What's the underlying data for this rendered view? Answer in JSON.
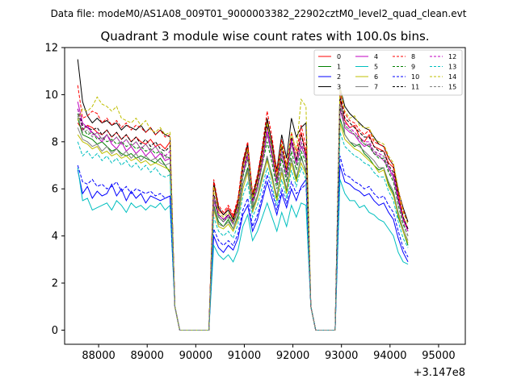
{
  "chart_data": {
    "type": "line",
    "suptitle": "Data file: modeM0/AS1A08_009T01_9000003382_22902cztM0_level2_quad_clean.evt",
    "title": "Quadrant 3 module wise count rates with 100.0s bins.",
    "xlabel": "",
    "ylabel": "",
    "x_offset_label": "+3.147e8",
    "xlim": [
      87300,
      95550
    ],
    "ylim": [
      -0.6,
      12.0
    ],
    "xticks": [
      88000,
      89000,
      90000,
      91000,
      92000,
      93000,
      94000,
      95000
    ],
    "yticks": [
      0,
      2,
      4,
      6,
      8,
      10,
      12
    ],
    "grid": false,
    "legend_position": "top-right",
    "x_segments": [
      {
        "start": 87570,
        "step": 100,
        "count": 20
      },
      {
        "start": 89570,
        "step": 100,
        "count": 8
      },
      {
        "start": 90370,
        "step": 100,
        "count": 8
      },
      {
        "start": 91170,
        "step": 100,
        "count": 20
      },
      {
        "start": 93170,
        "step": 100,
        "count": 6
      },
      {
        "start": 93770,
        "step": 100,
        "count": 15
      }
    ],
    "gap_blocks": [
      {
        "after_index": 19,
        "values": [
          1.0,
          0.0,
          0.0
        ]
      },
      {
        "after_index": 39,
        "values": [
          1.0,
          0.0,
          0.0
        ]
      }
    ],
    "series": [
      {
        "name": "0",
        "color": "#ff0000",
        "dash": "solid",
        "seg1": [
          8.8,
          8.5,
          8.7,
          8.6,
          8.4,
          8.3,
          8.5,
          8.2,
          8.4,
          8.1,
          8.3,
          8.0,
          8.2,
          8.0,
          7.9,
          8.1,
          7.8,
          7.9,
          7.7,
          8.0
        ],
        "seg2": [
          6.2,
          5.1,
          4.9,
          5.2,
          4.8,
          5.5,
          7.0,
          7.8,
          5.6,
          6.4,
          7.5,
          8.9,
          8.0,
          6.5,
          7.9,
          6.8,
          8.1,
          7.2,
          8.4,
          7.5
        ],
        "seg3": [
          9.8,
          8.9,
          8.6,
          8.7,
          8.2,
          8.0,
          8.3,
          7.8,
          7.7,
          7.6,
          7.1,
          6.9,
          5.8,
          4.8,
          4.3
        ]
      },
      {
        "name": "1",
        "color": "#008000",
        "dash": "solid",
        "seg1": [
          9.0,
          8.3,
          8.2,
          8.1,
          7.9,
          8.0,
          7.8,
          7.6,
          7.7,
          7.5,
          7.4,
          7.5,
          7.3,
          7.4,
          7.3,
          7.2,
          7.1,
          7.3,
          7.0,
          6.7
        ],
        "seg2": [
          5.3,
          4.6,
          4.4,
          4.7,
          4.3,
          4.9,
          6.2,
          6.9,
          5.2,
          5.7,
          6.6,
          7.3,
          6.6,
          5.6,
          6.9,
          5.9,
          7.3,
          6.4,
          7.4,
          6.7
        ],
        "seg3": [
          9.0,
          8.3,
          8.0,
          7.8,
          7.9,
          7.5,
          7.3,
          7.0,
          6.8,
          6.9,
          6.2,
          5.8,
          4.8,
          4.2,
          3.6
        ]
      },
      {
        "name": "2",
        "color": "#0000ff",
        "dash": "solid",
        "seg1": [
          6.8,
          5.8,
          6.1,
          5.6,
          5.9,
          5.7,
          5.8,
          6.2,
          5.7,
          6.0,
          5.5,
          5.9,
          5.6,
          5.8,
          5.4,
          5.7,
          5.6,
          5.5,
          5.6,
          5.7
        ],
        "seg2": [
          4.0,
          3.5,
          3.3,
          3.6,
          3.4,
          3.9,
          4.9,
          5.3,
          4.2,
          4.7,
          5.5,
          6.3,
          5.6,
          4.9,
          5.8,
          5.2,
          6.0,
          5.5,
          6.1,
          6.4
        ],
        "seg3": [
          7.0,
          6.3,
          6.2,
          6.0,
          5.9,
          5.7,
          5.8,
          5.5,
          5.3,
          5.4,
          5.0,
          4.7,
          3.9,
          3.3,
          2.9
        ]
      },
      {
        "name": "3",
        "color": "#000000",
        "dash": "solid",
        "seg1": [
          11.5,
          9.7,
          9.1,
          8.8,
          9.0,
          8.8,
          8.9,
          8.7,
          8.8,
          8.5,
          8.7,
          8.6,
          8.5,
          8.7,
          8.4,
          8.6,
          8.3,
          8.5,
          8.3,
          8.2
        ],
        "seg2": [
          6.3,
          5.2,
          4.9,
          5.1,
          4.7,
          5.4,
          7.1,
          7.9,
          5.7,
          6.5,
          7.7,
          9.0,
          7.9,
          6.8,
          8.3,
          7.3,
          9.0,
          8.2,
          8.6,
          8.8
        ],
        "seg3": [
          10.3,
          9.5,
          9.2,
          9.0,
          8.8,
          8.6,
          8.5,
          8.2,
          7.9,
          7.8,
          7.3,
          7.0,
          5.9,
          5.2,
          4.6
        ]
      },
      {
        "name": "4",
        "color": "#c000c0",
        "dash": "solid",
        "seg1": [
          9.7,
          8.8,
          8.6,
          8.4,
          8.2,
          8.0,
          8.3,
          7.9,
          7.7,
          8.0,
          7.6,
          7.8,
          7.5,
          7.7,
          7.4,
          7.6,
          7.3,
          7.5,
          7.2,
          7.3
        ],
        "seg2": [
          5.5,
          4.8,
          4.6,
          4.9,
          4.5,
          5.1,
          6.6,
          7.4,
          5.4,
          6.0,
          7.1,
          8.4,
          7.4,
          6.2,
          7.5,
          6.5,
          8.0,
          7.0,
          7.8,
          7.3
        ],
        "seg3": [
          9.4,
          8.6,
          8.4,
          8.3,
          8.0,
          7.8,
          7.9,
          7.5,
          7.4,
          7.2,
          6.9,
          6.5,
          5.5,
          4.7,
          4.2
        ]
      },
      {
        "name": "5",
        "color": "#00bfbf",
        "dash": "solid",
        "seg1": [
          6.9,
          5.5,
          5.6,
          5.1,
          5.2,
          5.3,
          5.4,
          5.1,
          5.5,
          5.3,
          5.0,
          5.4,
          5.2,
          5.3,
          5.1,
          5.3,
          5.2,
          5.4,
          5.1,
          5.3
        ],
        "seg2": [
          3.6,
          3.2,
          3.0,
          3.2,
          2.9,
          3.4,
          4.4,
          4.9,
          3.8,
          4.2,
          4.8,
          5.4,
          4.8,
          4.2,
          5.0,
          4.4,
          5.3,
          4.8,
          5.4,
          5.3
        ],
        "seg3": [
          6.4,
          5.8,
          5.5,
          5.5,
          5.2,
          5.3,
          5.0,
          4.9,
          4.7,
          4.6,
          4.3,
          4.0,
          3.3,
          2.9,
          2.8
        ]
      },
      {
        "name": "6",
        "color": "#bfbf00",
        "dash": "solid",
        "seg1": [
          8.3,
          8.0,
          7.9,
          7.7,
          7.8,
          7.5,
          7.6,
          7.4,
          7.5,
          7.3,
          7.4,
          7.2,
          7.3,
          7.1,
          7.2,
          7.0,
          7.1,
          7.0,
          6.9,
          6.8
        ],
        "seg2": [
          5.1,
          4.4,
          4.3,
          4.5,
          4.2,
          4.7,
          6.0,
          6.7,
          5.0,
          5.6,
          6.4,
          7.2,
          6.4,
          5.5,
          6.7,
          5.8,
          7.1,
          6.3,
          7.1,
          6.6
        ],
        "seg3": [
          8.8,
          8.1,
          7.9,
          7.7,
          7.6,
          7.4,
          7.2,
          7.0,
          6.7,
          6.8,
          6.1,
          5.7,
          4.9,
          4.2,
          3.7
        ]
      },
      {
        "name": "7",
        "color": "#808080",
        "dash": "solid",
        "seg1": [
          8.6,
          8.1,
          8.0,
          7.8,
          7.9,
          7.6,
          7.8,
          7.5,
          7.7,
          7.4,
          7.6,
          7.3,
          7.5,
          7.2,
          7.4,
          7.2,
          7.3,
          7.1,
          7.0,
          7.1
        ],
        "seg2": [
          5.2,
          4.5,
          4.4,
          4.6,
          4.3,
          4.8,
          6.2,
          6.8,
          5.1,
          5.7,
          6.5,
          7.4,
          6.5,
          5.7,
          6.9,
          6.0,
          7.3,
          6.5,
          7.3,
          6.8
        ],
        "seg3": [
          10.4,
          8.3,
          8.0,
          7.9,
          7.8,
          7.6,
          7.4,
          7.2,
          6.9,
          6.9,
          6.3,
          5.9,
          5.0,
          4.3,
          3.8
        ]
      },
      {
        "name": "8",
        "color": "#ff0000",
        "dash": "dashed",
        "seg1": [
          10.4,
          9.0,
          9.1,
          9.3,
          9.2,
          8.8,
          9.0,
          8.7,
          8.9,
          8.6,
          8.8,
          8.5,
          8.7,
          8.6,
          8.4,
          8.6,
          8.3,
          8.5,
          8.2,
          8.3
        ],
        "seg2": [
          6.4,
          5.3,
          5.0,
          5.3,
          4.9,
          5.6,
          7.2,
          8.0,
          5.8,
          6.6,
          7.8,
          9.3,
          8.2,
          6.7,
          8.1,
          7.0,
          8.4,
          7.5,
          8.7,
          7.8
        ],
        "seg3": [
          10.1,
          9.2,
          8.9,
          8.8,
          8.5,
          8.3,
          8.5,
          8.0,
          7.9,
          7.8,
          7.3,
          7.0,
          6.0,
          5.1,
          4.5
        ]
      },
      {
        "name": "9",
        "color": "#008000",
        "dash": "dashed",
        "seg1": [
          9.2,
          8.6,
          8.3,
          8.4,
          8.1,
          8.2,
          8.0,
          8.1,
          7.9,
          8.0,
          7.8,
          7.9,
          7.7,
          7.8,
          7.6,
          7.7,
          7.5,
          7.6,
          7.4,
          7.3
        ],
        "seg2": [
          5.6,
          4.8,
          4.6,
          4.8,
          4.5,
          5.1,
          6.5,
          7.3,
          5.4,
          6.0,
          7.0,
          8.0,
          7.1,
          6.0,
          7.3,
          6.3,
          7.6,
          6.8,
          7.6,
          7.1
        ],
        "seg3": [
          9.5,
          8.7,
          8.5,
          8.3,
          8.2,
          7.9,
          7.8,
          7.5,
          7.3,
          7.3,
          6.7,
          6.3,
          5.3,
          4.5,
          4.0
        ]
      },
      {
        "name": "10",
        "color": "#0000ff",
        "dash": "dashed",
        "seg1": [
          7.0,
          6.3,
          6.2,
          6.4,
          6.1,
          6.2,
          6.0,
          6.1,
          6.3,
          5.9,
          6.1,
          5.8,
          6.0,
          5.9,
          5.8,
          5.9,
          5.7,
          5.8,
          5.6,
          5.7
        ],
        "seg2": [
          4.3,
          3.8,
          3.6,
          3.8,
          3.6,
          4.1,
          5.1,
          5.6,
          4.4,
          4.9,
          5.7,
          6.6,
          5.9,
          5.1,
          6.0,
          5.4,
          6.3,
          5.8,
          6.0,
          6.2
        ],
        "seg3": [
          7.4,
          6.6,
          6.5,
          6.3,
          6.2,
          6.0,
          6.1,
          5.8,
          5.6,
          5.7,
          5.3,
          5.0,
          4.2,
          3.5,
          3.1
        ]
      },
      {
        "name": "11",
        "color": "#000000",
        "dash": "dashed",
        "seg1": [
          9.4,
          8.7,
          8.6,
          8.5,
          8.6,
          8.3,
          8.5,
          8.2,
          8.4,
          8.1,
          8.3,
          8.0,
          8.2,
          7.9,
          8.1,
          7.8,
          8.0,
          7.7,
          7.6,
          7.8
        ],
        "seg2": [
          5.8,
          4.9,
          4.7,
          4.9,
          4.6,
          5.2,
          6.8,
          7.6,
          5.5,
          6.2,
          7.3,
          8.7,
          7.6,
          6.4,
          7.8,
          6.7,
          8.2,
          7.2,
          8.3,
          7.4
        ],
        "seg3": [
          9.9,
          9.0,
          8.8,
          8.6,
          8.4,
          8.2,
          8.2,
          7.8,
          7.6,
          7.6,
          7.0,
          6.7,
          5.6,
          4.8,
          4.3
        ]
      },
      {
        "name": "12",
        "color": "#c000c0",
        "dash": "dashed",
        "seg1": [
          9.4,
          8.5,
          8.7,
          8.3,
          8.4,
          8.1,
          8.3,
          8.0,
          8.2,
          7.9,
          8.1,
          7.8,
          8.0,
          7.7,
          7.9,
          7.6,
          7.8,
          7.5,
          7.4,
          7.6
        ],
        "seg2": [
          5.7,
          4.9,
          4.7,
          4.9,
          4.5,
          5.2,
          6.7,
          7.5,
          5.5,
          6.1,
          7.2,
          8.6,
          7.5,
          6.3,
          7.6,
          6.6,
          8.1,
          7.1,
          8.0,
          7.4
        ],
        "seg3": [
          9.6,
          8.8,
          8.6,
          8.4,
          8.2,
          8.0,
          8.0,
          7.6,
          7.5,
          7.4,
          6.9,
          6.6,
          5.6,
          4.7,
          4.2
        ]
      },
      {
        "name": "13",
        "color": "#00bfbf",
        "dash": "dashed",
        "seg1": [
          8.0,
          7.4,
          7.6,
          7.3,
          7.5,
          7.2,
          7.4,
          7.1,
          7.3,
          7.0,
          7.2,
          6.9,
          7.1,
          6.8,
          7.0,
          6.7,
          6.9,
          6.6,
          6.5,
          6.6
        ],
        "seg2": [
          4.8,
          4.2,
          4.0,
          4.2,
          3.9,
          4.5,
          5.7,
          6.3,
          4.8,
          5.3,
          6.1,
          6.9,
          6.1,
          5.3,
          6.4,
          5.6,
          6.8,
          6.1,
          6.9,
          6.4
        ],
        "seg3": [
          8.4,
          7.8,
          7.6,
          7.4,
          7.3,
          7.1,
          7.0,
          6.7,
          6.5,
          6.5,
          5.9,
          5.5,
          4.6,
          3.9,
          3.5
        ]
      },
      {
        "name": "14",
        "color": "#bfbf00",
        "dash": "dashed",
        "seg1": [
          8.9,
          9.4,
          9.3,
          9.5,
          9.9,
          9.6,
          9.5,
          9.3,
          9.5,
          9.0,
          8.9,
          8.8,
          9.0,
          8.7,
          8.9,
          8.5,
          8.4,
          8.6,
          8.3,
          8.4
        ],
        "seg2": [
          6.1,
          5.0,
          4.8,
          5.0,
          4.6,
          5.3,
          6.9,
          7.7,
          5.6,
          6.3,
          7.4,
          8.8,
          7.7,
          6.5,
          7.9,
          6.9,
          8.4,
          7.6,
          9.8,
          9.5
        ],
        "seg3": [
          10.3,
          9.3,
          9.0,
          9.1,
          8.7,
          8.6,
          8.6,
          8.1,
          8.0,
          7.9,
          7.4,
          7.1,
          6.0,
          5.0,
          4.5
        ]
      },
      {
        "name": "15",
        "color": "#808080",
        "dash": "dashed",
        "seg1": [
          9.1,
          8.4,
          8.5,
          8.2,
          8.4,
          8.1,
          8.3,
          8.0,
          8.2,
          7.9,
          8.1,
          7.8,
          8.0,
          7.7,
          7.9,
          7.6,
          7.8,
          7.5,
          7.3,
          7.4
        ],
        "seg2": [
          5.6,
          4.8,
          4.6,
          4.8,
          4.5,
          5.1,
          6.6,
          7.3,
          5.3,
          6.0,
          7.0,
          8.3,
          7.3,
          6.2,
          7.5,
          6.5,
          7.9,
          7.0,
          7.9,
          7.2
        ],
        "seg3": [
          9.6,
          8.7,
          8.5,
          8.3,
          8.1,
          7.9,
          7.9,
          7.6,
          7.4,
          7.4,
          6.8,
          6.4,
          5.4,
          4.6,
          4.0
        ]
      }
    ]
  }
}
